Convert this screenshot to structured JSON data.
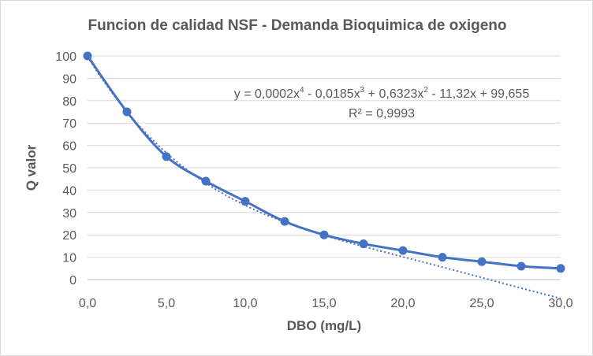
{
  "chart_data": {
    "type": "scatter",
    "title": "Funcion de calidad NSF - Demanda Bioquimica de oxigeno",
    "xlabel": "DBO (mg/L)",
    "ylabel": "Q valor",
    "xlim": [
      0,
      30
    ],
    "ylim": [
      0,
      100
    ],
    "x_ticks": [
      "0,0",
      "5,0",
      "10,0",
      "15,0",
      "20,0",
      "25,0",
      "30,0"
    ],
    "y_ticks": [
      "0",
      "10",
      "20",
      "30",
      "40",
      "50",
      "60",
      "70",
      "80",
      "90",
      "100"
    ],
    "grid": "horizontal",
    "series": [
      {
        "x": [
          0,
          2.5,
          5,
          7.5,
          10,
          12.5,
          15,
          17.5,
          20,
          22.5,
          25,
          27.5,
          30
        ],
        "y": [
          100,
          75,
          55,
          44,
          35,
          26,
          20,
          16,
          13,
          10,
          8,
          6,
          5
        ],
        "color": "#4472c4",
        "line": "smooth",
        "marker": "circle"
      }
    ],
    "trendline": {
      "type": "polynomial",
      "order": 4,
      "style": "dotted",
      "color": "#4472c4",
      "coefficients": [
        0.0002,
        -0.0185,
        0.6323,
        -11.32,
        99.655
      ]
    },
    "annotations": {
      "equation": {
        "prefix": "y = 0,0002x",
        "exp1": "4",
        "part2": " - 0,0185x",
        "exp2": "3",
        "part3": " + 0,6323x",
        "exp3": "2",
        "part4": " - 11,32x + 99,655"
      },
      "r_squared": "R² = 0,9993"
    }
  }
}
